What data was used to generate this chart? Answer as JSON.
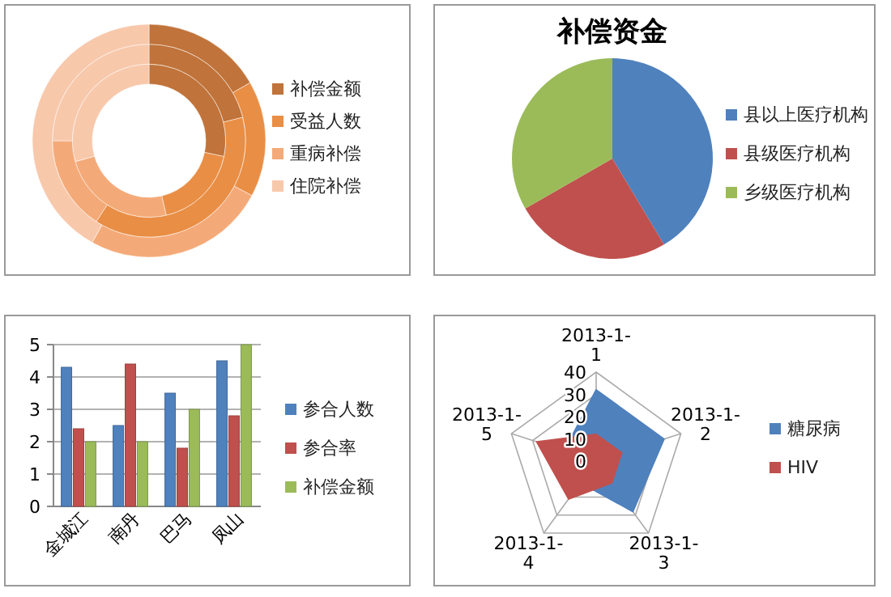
{
  "chart_data": [
    {
      "type": "donut",
      "categories": [
        "补偿金额",
        "受益人数",
        "重病补偿",
        "住院补偿"
      ],
      "colors": [
        "#c0733a",
        "#e98e45",
        "#f4aa78",
        "#f8c8ab"
      ],
      "legend": "right",
      "series": [
        {
          "values": [
            28.3,
            18.1,
            24.2,
            29.4
          ]
        },
        {
          "values": [
            21.1,
            38.1,
            15.8,
            25.0
          ]
        },
        {
          "values": [
            16.7,
            16.1,
            25.3,
            41.9
          ]
        }
      ]
    },
    {
      "type": "pie",
      "title": "补偿资金",
      "categories": [
        "县以上医疗机构",
        "县级医疗机构",
        "乡级医疗机构"
      ],
      "values": [
        41.4,
        25.3,
        33.3
      ],
      "colors": [
        "#4f81bd",
        "#c0504d",
        "#9bbb59"
      ],
      "legend": "right"
    },
    {
      "type": "bar",
      "categories": [
        "金城江",
        "南丹",
        "巴马",
        "凤山"
      ],
      "ylim": [
        0,
        5
      ],
      "yticks": [
        0,
        1,
        2,
        3,
        4,
        5
      ],
      "grid": "y",
      "legend": "right",
      "series": [
        {
          "name": "参合人数",
          "color": "#4f81bd",
          "values": [
            4.3,
            2.5,
            3.5,
            4.5
          ]
        },
        {
          "name": "参合率",
          "color": "#c0504d",
          "values": [
            2.4,
            4.4,
            1.8,
            2.8
          ]
        },
        {
          "name": "补偿金额",
          "color": "#9bbb59",
          "values": [
            2.0,
            2.0,
            3.0,
            5.0
          ]
        }
      ]
    },
    {
      "type": "radar",
      "categories": [
        "2013-1-1",
        "2013-1-2",
        "2013-1-3",
        "2013-1-4",
        "2013-1-5"
      ],
      "ylim": [
        0,
        40
      ],
      "yticks": [
        0,
        10,
        20,
        30,
        40
      ],
      "grid": true,
      "legend": "right",
      "series": [
        {
          "name": "糖尿病",
          "color": "#4f81bd",
          "values": [
            32,
            32,
            28,
            12,
            15
          ]
        },
        {
          "name": "HIV",
          "color": "#c0504d",
          "values": [
            12,
            12,
            12,
            21,
            28
          ]
        }
      ]
    }
  ]
}
